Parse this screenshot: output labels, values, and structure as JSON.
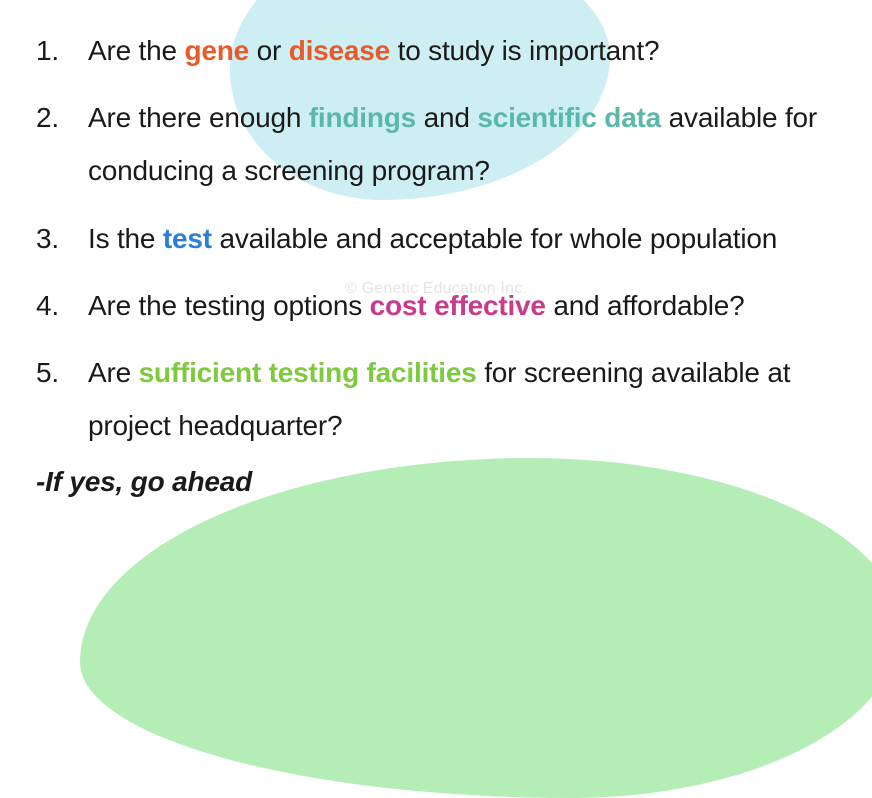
{
  "colors": {
    "orange": "#e85a2a",
    "teal": "#5bb8a8",
    "blue": "#2a7fd4",
    "magenta": "#c93a8a",
    "green": "#7fc93f",
    "text": "#1a1a1a",
    "blob_top": "#cdeef2",
    "blob_bottom": "#b5edb6",
    "watermark": "#e4e4e4"
  },
  "typography": {
    "body_fontsize": 28,
    "line_height": 1.9,
    "highlight_weight": 700
  },
  "list": [
    {
      "parts": [
        {
          "text": "Are the "
        },
        {
          "text": "gene",
          "color_key": "orange",
          "bold": true
        },
        {
          "text": " or "
        },
        {
          "text": "disease",
          "color_key": "orange",
          "bold": true
        },
        {
          "text": " to study is important?"
        }
      ]
    },
    {
      "parts": [
        {
          "text": "Are there enough "
        },
        {
          "text": "findings",
          "color_key": "teal",
          "bold": true
        },
        {
          "text": " and "
        },
        {
          "text": "scientific data",
          "color_key": "teal",
          "bold": true
        },
        {
          "text": " available for conducing a screening program?"
        }
      ]
    },
    {
      "parts": [
        {
          "text": "Is the "
        },
        {
          "text": "test",
          "color_key": "blue",
          "bold": true
        },
        {
          "text": " available and acceptable for whole population"
        }
      ]
    },
    {
      "parts": [
        {
          "text": "Are the testing options "
        },
        {
          "text": "cost effective",
          "color_key": "magenta",
          "bold": true
        },
        {
          "text": " and affordable?"
        }
      ]
    },
    {
      "parts": [
        {
          "text": "Are "
        },
        {
          "text": "sufficient testing facilities",
          "color_key": "green",
          "bold": true
        },
        {
          "text": " for screening available at project headquarter?"
        }
      ]
    }
  ],
  "footer": "-If yes, go ahead",
  "watermark": "© Genetic Education Inc."
}
